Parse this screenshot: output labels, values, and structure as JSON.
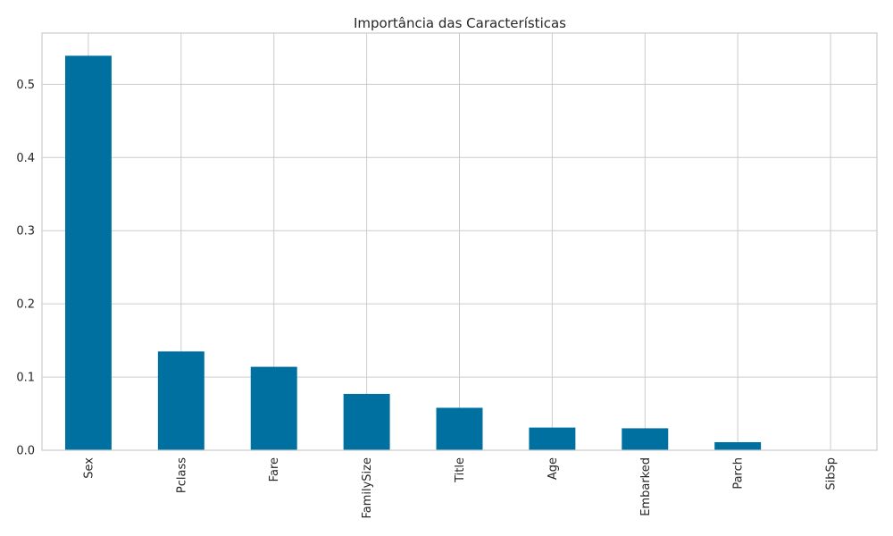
{
  "chart_data": {
    "type": "bar",
    "title": "Importância das Características",
    "xlabel": "",
    "ylabel": "",
    "categories": [
      "Sex",
      "Pclass",
      "Fare",
      "FamilySize",
      "Title",
      "Age",
      "Embarked",
      "Parch",
      "SibSp"
    ],
    "values": [
      0.539,
      0.135,
      0.114,
      0.077,
      0.058,
      0.031,
      0.03,
      0.011,
      0.0
    ],
    "ylim": [
      0,
      0.57
    ],
    "yticks": [
      0.0,
      0.1,
      0.2,
      0.3,
      0.4,
      0.5
    ],
    "ytick_labels": [
      "0.0",
      "0.1",
      "0.2",
      "0.3",
      "0.4",
      "0.5"
    ],
    "bar_color": "#0070a0",
    "grid": true,
    "legend": "none"
  }
}
